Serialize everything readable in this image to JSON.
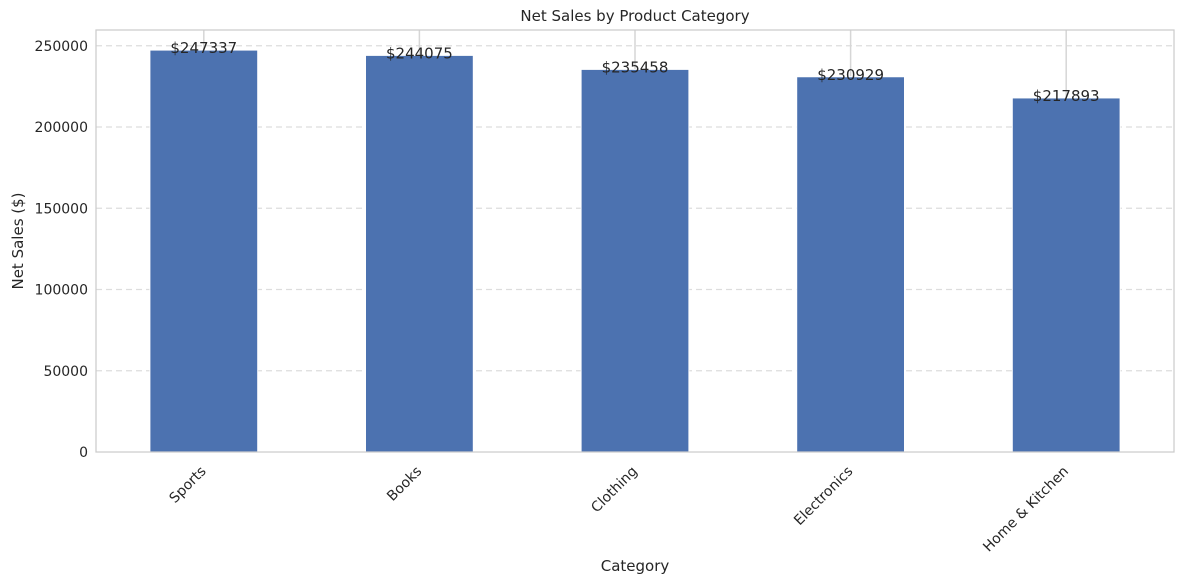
{
  "chart_data": {
    "type": "bar",
    "title": "Net Sales by Product Category",
    "xlabel": "Category",
    "ylabel": "Net Sales ($)",
    "categories": [
      "Sports",
      "Books",
      "Clothing",
      "Electronics",
      "Home & Kitchen"
    ],
    "values": [
      247337,
      244075,
      235458,
      230929,
      217893
    ],
    "data_labels": [
      "$247337",
      "$244075",
      "$235458",
      "$230929",
      "$217893"
    ],
    "ylim": [
      0,
      259700
    ],
    "yticks": [
      0,
      50000,
      100000,
      150000,
      200000,
      250000
    ],
    "ytick_labels": [
      "0",
      "50000",
      "100000",
      "150000",
      "200000",
      "250000"
    ],
    "grid": "y-dashed",
    "bar_color": "#4c72b0"
  }
}
